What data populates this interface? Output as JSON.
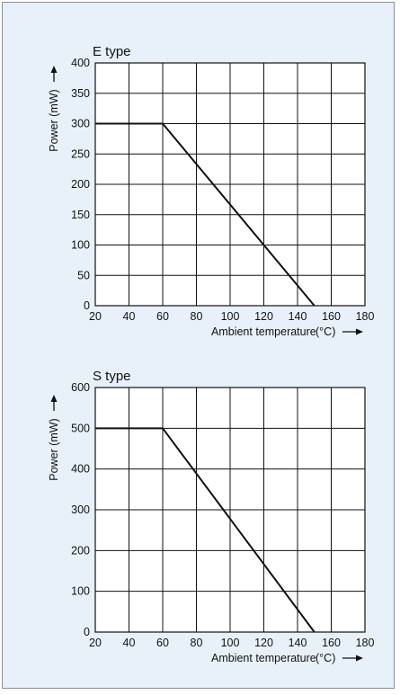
{
  "colors": {
    "panel_background": "#e8f1f9",
    "plot_background": "#ffffff",
    "line": "#111111",
    "grid": "#111111"
  },
  "chart_data": [
    {
      "type": "line",
      "title": "E type",
      "xlabel": "Ambient temperature",
      "xunit": "(°C)",
      "ylabel": "Power (mW)",
      "xlim": [
        20,
        180
      ],
      "ylim": [
        0,
        400
      ],
      "xticks": [
        20,
        40,
        60,
        80,
        100,
        120,
        140,
        160,
        180
      ],
      "yticks": [
        0,
        50,
        100,
        150,
        200,
        250,
        300,
        350,
        400
      ],
      "grid": true,
      "series": [
        {
          "x": [
            20,
            60,
            150
          ],
          "y": [
            300,
            300,
            0
          ]
        }
      ]
    },
    {
      "type": "line",
      "title": "S type",
      "xlabel": "Ambient temperature",
      "xunit": "(°C)",
      "ylabel": "Power (mW)",
      "xlim": [
        20,
        180
      ],
      "ylim": [
        0,
        600
      ],
      "xticks": [
        20,
        40,
        60,
        80,
        100,
        120,
        140,
        160,
        180
      ],
      "yticks": [
        0,
        100,
        200,
        300,
        400,
        500,
        600
      ],
      "grid": true,
      "series": [
        {
          "x": [
            20,
            60,
            150
          ],
          "y": [
            500,
            500,
            0
          ]
        }
      ]
    }
  ]
}
